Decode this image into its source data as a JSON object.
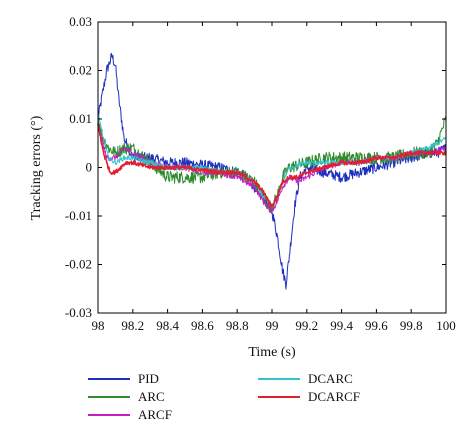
{
  "chart_data": {
    "type": "line",
    "title": "",
    "xlabel": "Time (s)",
    "ylabel": "Tracking errors (°)",
    "xlim": [
      98,
      100
    ],
    "ylim": [
      -0.03,
      0.03
    ],
    "x_ticks": [
      "98",
      "98.2",
      "98.4",
      "98.6",
      "98.8",
      "99",
      "99.2",
      "99.4",
      "99.6",
      "99.8",
      "100"
    ],
    "y_ticks": [
      "0.03",
      "0.02",
      "0.01",
      "0",
      "-0.01",
      "-0.02",
      "-0.03"
    ],
    "grid": false,
    "legend_position": "below plot",
    "series": [
      {
        "name": "PID",
        "color": "#1f2fbf",
        "noise": 0.0011,
        "x": [
          98.0,
          98.02,
          98.05,
          98.08,
          98.1,
          98.12,
          98.15,
          98.2,
          98.3,
          98.4,
          98.5,
          98.6,
          98.7,
          98.8,
          98.85,
          98.9,
          98.95,
          99.0,
          99.03,
          99.06,
          99.08,
          99.1,
          99.13,
          99.16,
          99.2,
          99.3,
          99.4,
          99.5,
          99.6,
          99.7,
          99.8,
          99.9,
          99.95,
          100.0
        ],
        "y": [
          0.01,
          0.014,
          0.02,
          0.023,
          0.021,
          0.014,
          0.006,
          0.002,
          0.002,
          0.001,
          0.001,
          0.0005,
          0.0,
          -0.001,
          -0.002,
          -0.004,
          -0.006,
          -0.009,
          -0.014,
          -0.021,
          -0.024,
          -0.018,
          -0.008,
          -0.002,
          0.0,
          -0.001,
          -0.002,
          -0.001,
          0.0,
          0.001,
          0.002,
          0.003,
          0.003,
          0.004
        ]
      },
      {
        "name": "ARC",
        "color": "#2e8b2e",
        "noise": 0.0013,
        "x": [
          98.0,
          98.03,
          98.06,
          98.1,
          98.15,
          98.2,
          98.3,
          98.4,
          98.5,
          98.6,
          98.7,
          98.8,
          98.9,
          98.95,
          98.98,
          99.0,
          99.03,
          99.06,
          99.1,
          99.2,
          99.3,
          99.4,
          99.5,
          99.6,
          99.7,
          99.8,
          99.9,
          99.95,
          100.0
        ],
        "y": [
          0.01,
          0.006,
          0.004,
          0.003,
          0.004,
          0.004,
          0.001,
          -0.002,
          -0.002,
          -0.002,
          -0.001,
          -0.001,
          -0.003,
          -0.006,
          -0.008,
          -0.008,
          -0.006,
          -0.002,
          0.0,
          0.001,
          0.002,
          0.002,
          0.002,
          0.002,
          0.002,
          0.003,
          0.003,
          0.005,
          0.01
        ]
      },
      {
        "name": "ARCF",
        "color": "#c21fc2",
        "noise": 0.0006,
        "x": [
          98.0,
          98.02,
          98.05,
          98.1,
          98.15,
          98.2,
          98.3,
          98.4,
          98.5,
          98.6,
          98.7,
          98.8,
          98.9,
          98.95,
          99.0,
          99.03,
          99.06,
          99.1,
          99.15,
          99.2,
          99.3,
          99.4,
          99.5,
          99.6,
          99.7,
          99.8,
          99.9,
          100.0
        ],
        "y": [
          0.009,
          0.006,
          0.002,
          0.002,
          0.004,
          0.003,
          0.001,
          0.0,
          0.0,
          -0.001,
          -0.001,
          -0.002,
          -0.004,
          -0.007,
          -0.009,
          -0.007,
          -0.004,
          -0.002,
          -0.003,
          -0.002,
          0.0,
          0.001,
          0.001,
          0.002,
          0.002,
          0.003,
          0.003,
          0.004
        ]
      },
      {
        "name": "DCARC",
        "color": "#2fc4cc",
        "noise": 0.0005,
        "x": [
          98.0,
          98.03,
          98.06,
          98.1,
          98.15,
          98.2,
          98.3,
          98.4,
          98.5,
          98.6,
          98.7,
          98.8,
          98.9,
          98.95,
          99.0,
          99.03,
          99.06,
          99.1,
          99.2,
          99.3,
          99.4,
          99.5,
          99.6,
          99.7,
          99.8,
          99.9,
          100.0
        ],
        "y": [
          0.011,
          0.006,
          0.002,
          0.001,
          0.002,
          0.002,
          0.001,
          0.0,
          0.0,
          0.0,
          -0.001,
          -0.001,
          -0.003,
          -0.006,
          -0.008,
          -0.006,
          -0.003,
          0.0,
          0.001,
          0.001,
          0.001,
          0.001,
          0.002,
          0.002,
          0.003,
          0.004,
          0.006
        ]
      },
      {
        "name": "DCARCF",
        "color": "#e0202e",
        "noise": 0.0004,
        "x": [
          98.0,
          98.02,
          98.04,
          98.07,
          98.1,
          98.13,
          98.16,
          98.2,
          98.3,
          98.4,
          98.5,
          98.6,
          98.7,
          98.8,
          98.85,
          98.9,
          98.95,
          98.98,
          99.0,
          99.03,
          99.06,
          99.1,
          99.15,
          99.2,
          99.3,
          99.4,
          99.5,
          99.6,
          99.7,
          99.8,
          99.9,
          100.0
        ],
        "y": [
          0.009,
          0.005,
          0.002,
          -0.001,
          -0.001,
          0.0,
          0.001,
          0.001,
          0.0,
          0.0,
          0.0,
          -0.0005,
          -0.001,
          -0.001,
          -0.002,
          -0.003,
          -0.005,
          -0.007,
          -0.008,
          -0.006,
          -0.003,
          -0.002,
          -0.002,
          -0.001,
          0.0,
          0.001,
          0.001,
          0.002,
          0.002,
          0.003,
          0.003,
          0.003
        ]
      }
    ]
  }
}
